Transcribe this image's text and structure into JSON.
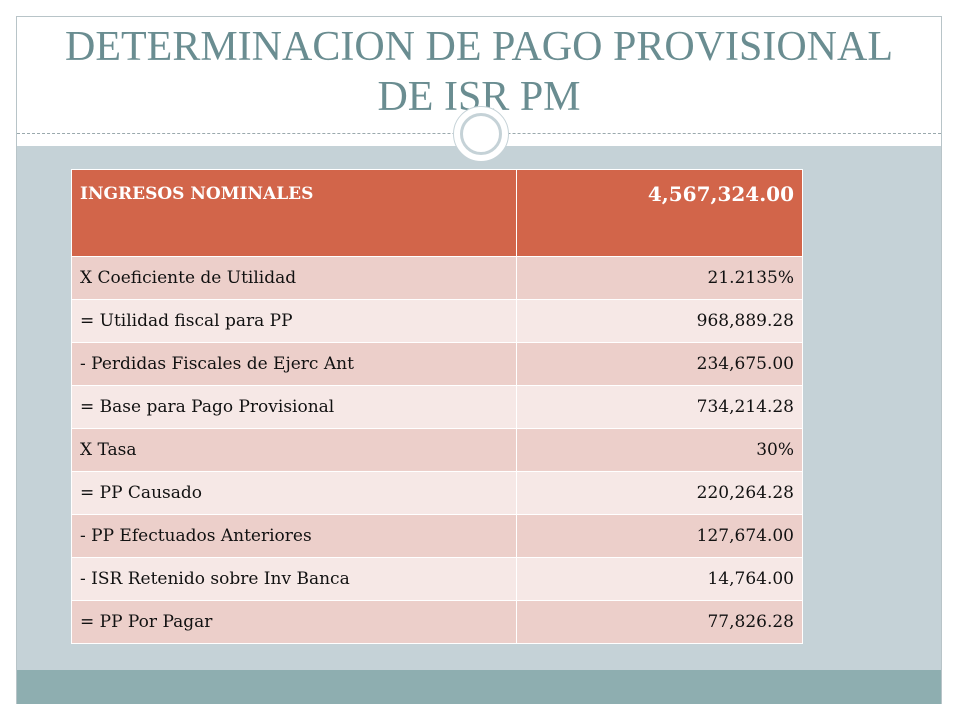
{
  "slide": {
    "title_line1": "DETERMINACION DE PAGO PROVISIONAL",
    "title_line2": "DE ISR PM"
  },
  "table": {
    "header": {
      "label": "INGRESOS NOMINALES",
      "value": "4,567,324.00"
    },
    "rows": [
      {
        "label": "X Coeficiente de Utilidad",
        "value": "21.2135%"
      },
      {
        "label": "= Utilidad fiscal para PP",
        "value": "968,889.28"
      },
      {
        "label": "- Perdidas Fiscales de Ejerc Ant",
        "value": "234,675.00"
      },
      {
        "label": "= Base para Pago Provisional",
        "value": "734,214.28"
      },
      {
        "label": "X Tasa",
        "value": "30%"
      },
      {
        "label": "= PP Causado",
        "value": "220,264.28"
      },
      {
        "label": "- PP  Efectuados Anteriores",
        "value": "127,674.00"
      },
      {
        "label": "- ISR Retenido sobre Inv Banca",
        "value": "14,764.00"
      },
      {
        "label": "= PP Por Pagar",
        "value": "77,826.28"
      }
    ]
  },
  "colors": {
    "title": "#6a8d91",
    "header_fill": "#d2654a",
    "row_dark": "#eccfca",
    "row_light": "#f6e8e6",
    "content_background": "#c5d2d7",
    "footer_band": "#8eaeb0"
  }
}
